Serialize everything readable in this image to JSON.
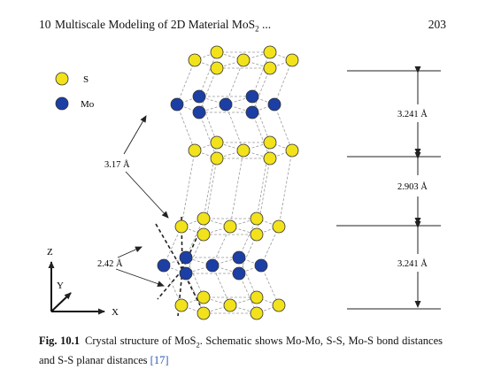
{
  "header": {
    "chapter_number": "10",
    "title_main": "Multiscale Modeling of 2D Material MoS",
    "title_sub": "2",
    "title_tail": " ...",
    "page_number": "203"
  },
  "legend": {
    "s_label": "S",
    "mo_label": "Mo"
  },
  "distances": {
    "mo_mo": "3.17 Å",
    "mo_s": "2.42 Å",
    "upper_plane": "3.241 Å",
    "middle_plane": "2.903 Å",
    "lower_plane": "3.241 Å"
  },
  "axes": {
    "z": "Z",
    "y": "Y",
    "x": "X"
  },
  "colors": {
    "sulfur": "#f2e21c",
    "molybdenum": "#1c3fa6",
    "atom_outline": "#333333",
    "link": "#2b55b6"
  },
  "caption": {
    "label": "Fig. 10.1",
    "text_a": "Crystal structure of MoS",
    "text_sub": "2",
    "text_b": ". Schematic shows Mo-Mo, S-S, Mo-S bond distances and S-S planar distances ",
    "ref": "[17]"
  }
}
